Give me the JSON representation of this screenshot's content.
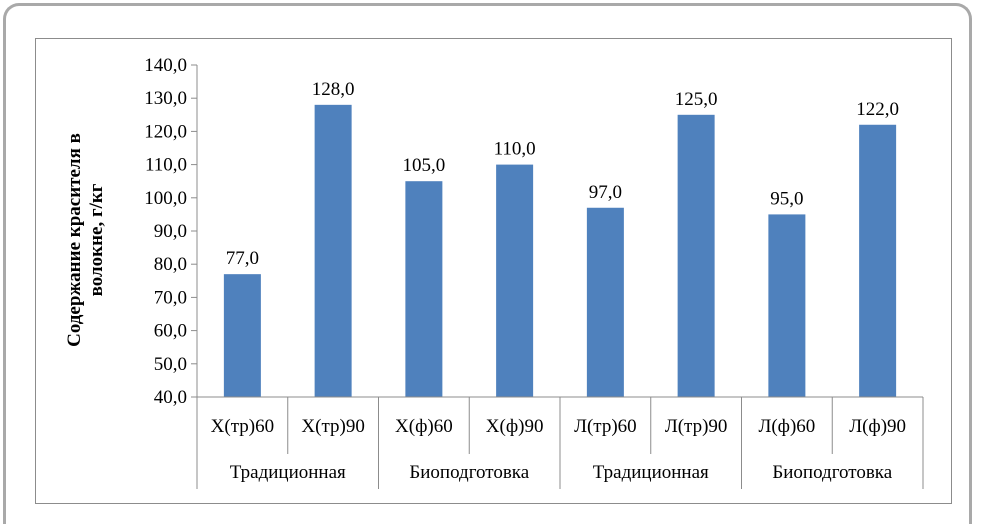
{
  "chart_data": {
    "type": "bar",
    "categories": [
      "Х(тр)60",
      "Х(тр)90",
      "Х(ф)60",
      "Х(ф)90",
      "Л(тр)60",
      "Л(тр)90",
      "Л(ф)60",
      "Л(ф)90"
    ],
    "groups": [
      "Традиционная",
      "Биоподготовка",
      "Традиционная",
      "Биоподготовка"
    ],
    "series": [
      {
        "values": [
          77.0,
          128.0,
          105.0,
          110.0,
          97.0,
          125.0,
          95.0,
          122.0
        ]
      }
    ],
    "data_labels": [
      "77,0",
      "128,0",
      "105,0",
      "110,0",
      "97,0",
      "125,0",
      "95,0",
      "122,0"
    ],
    "ylabel_lines": [
      "Содержание красителя в",
      "волокне, г/кг"
    ],
    "ylim": [
      40,
      140
    ],
    "ytick_values": [
      40,
      50,
      60,
      70,
      80,
      90,
      100,
      110,
      120,
      130,
      140
    ],
    "yticks": [
      "40,0",
      "50,0",
      "60,0",
      "70,0",
      "80,0",
      "90,0",
      "100,0",
      "110,0",
      "120,0",
      "130,0",
      "140,0"
    ],
    "bar_color": "#4f81bd",
    "grid": false,
    "legend": "none"
  }
}
